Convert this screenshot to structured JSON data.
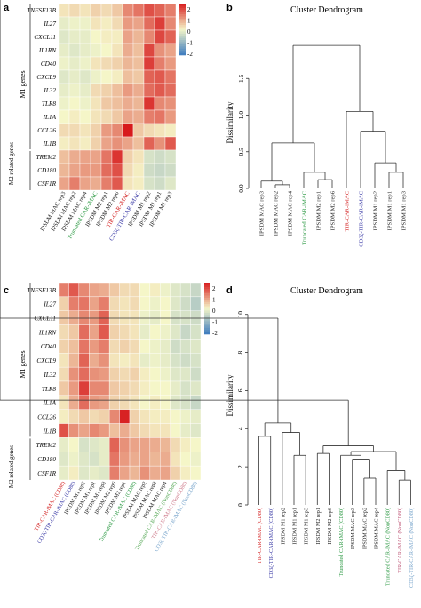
{
  "panels": {
    "a": {
      "label": "a",
      "rows": [
        "TNFSF13B",
        "IL27",
        "CXCL11",
        "IL1RN",
        "CD40",
        "CXCL9",
        "IL32",
        "TLR8",
        "IL1A",
        "CCL26",
        "IL1B",
        "TREM2",
        "CD180",
        "CSF1R"
      ],
      "cols": [
        {
          "label": "IPSDM MAC rep3",
          "color": "#222222"
        },
        {
          "label": "IPSDM MAC rep2",
          "color": "#222222"
        },
        {
          "label": "IPSDM MAC rep4",
          "color": "#222222"
        },
        {
          "label": "Truncated CAR-iMAC",
          "color": "#2e9a45"
        },
        {
          "label": "IPSDM M2 rep1",
          "color": "#222222"
        },
        {
          "label": "IPSDM M2 rep6",
          "color": "#222222"
        },
        {
          "label": "TIR-CAR-iMAC",
          "color": "#d42424"
        },
        {
          "label": "CD3ζ-TIR-CAR-iMAC",
          "color": "#3a3aa6"
        },
        {
          "label": "IPSDM M1 rep2",
          "color": "#222222"
        },
        {
          "label": "IPSDM M1 rep1",
          "color": "#222222"
        },
        {
          "label": "IPSDM M1 rep3",
          "color": "#222222"
        }
      ],
      "values": [
        [
          0.2,
          0.3,
          0.2,
          0.4,
          0.3,
          0.5,
          1.2,
          1.4,
          1.8,
          1.6,
          1.3
        ],
        [
          -0.2,
          -0.1,
          -0.1,
          0.2,
          0.1,
          0.3,
          1.0,
          0.9,
          1.5,
          2.0,
          1.2
        ],
        [
          -0.3,
          -0.2,
          -0.2,
          0.0,
          0.1,
          0.1,
          0.9,
          0.7,
          1.2,
          1.9,
          1.6
        ],
        [
          -0.2,
          -0.3,
          -0.2,
          -0.1,
          0.0,
          0.2,
          0.8,
          0.6,
          1.9,
          1.1,
          0.9
        ],
        [
          -0.1,
          -0.2,
          -0.1,
          0.2,
          0.3,
          0.4,
          0.7,
          0.6,
          2.0,
          1.3,
          1.0
        ],
        [
          -0.3,
          -0.2,
          -0.3,
          -0.1,
          0.0,
          0.1,
          0.6,
          0.5,
          1.6,
          1.7,
          1.4
        ],
        [
          -0.2,
          -0.1,
          -0.2,
          0.3,
          0.4,
          0.6,
          1.0,
          0.8,
          1.5,
          1.7,
          1.5
        ],
        [
          -0.1,
          0.0,
          -0.1,
          0.2,
          0.5,
          0.6,
          0.8,
          0.7,
          2.1,
          1.2,
          1.1
        ],
        [
          0.0,
          0.1,
          0.0,
          0.2,
          0.3,
          0.5,
          0.9,
          0.8,
          1.3,
          1.4,
          1.0
        ],
        [
          0.3,
          0.3,
          0.2,
          0.4,
          1.0,
          1.2,
          2.4,
          0.5,
          0.3,
          0.2,
          0.1
        ],
        [
          0.1,
          0.2,
          0.1,
          0.4,
          0.9,
          1.1,
          0.9,
          0.6,
          1.6,
          1.1,
          1.7
        ],
        [
          0.6,
          0.8,
          0.9,
          0.9,
          1.4,
          2.1,
          0.4,
          0.2,
          -0.4,
          -0.5,
          -0.4
        ],
        [
          0.7,
          0.9,
          1.0,
          1.0,
          1.5,
          1.8,
          0.3,
          0.1,
          -0.5,
          -0.6,
          -0.5
        ],
        [
          0.9,
          1.3,
          0.9,
          0.8,
          1.3,
          1.7,
          0.2,
          0.1,
          -0.4,
          -0.5,
          -0.3
        ]
      ],
      "group_labels": [
        "M1 genes",
        "M2 related genes"
      ],
      "legend_ticks": [
        "2",
        "1",
        "0",
        "-1",
        "-2"
      ]
    },
    "b": {
      "label": "b",
      "title": "Cluster Dendrogram",
      "ylabel": "Dissimilarity",
      "yticks": [
        "0.0",
        "0.5",
        "1.0",
        "1.5"
      ],
      "leaves": [
        {
          "label": "IPSDM MAC rep3",
          "color": "#222222"
        },
        {
          "label": "IPSDM MAC rep2",
          "color": "#222222"
        },
        {
          "label": "IPSDM MAC rep4",
          "color": "#222222"
        },
        {
          "label": "Truncated CAR-iMAC",
          "color": "#2e9a45"
        },
        {
          "label": "IPSDM M2 rep1",
          "color": "#222222"
        },
        {
          "label": "IPSDM M2 rep6",
          "color": "#222222"
        },
        {
          "label": "TIR-CAR-iMAC",
          "color": "#d42424"
        },
        {
          "label": "CD3ζ-TIR-CAR-iMAC",
          "color": "#3a3aa6"
        },
        {
          "label": "IPSDM M1 rep2",
          "color": "#222222"
        },
        {
          "label": "IPSDM M1 rep1",
          "color": "#222222"
        },
        {
          "label": "IPSDM M1 rep3",
          "color": "#222222"
        }
      ],
      "merges": [
        [
          1,
          2,
          0.05
        ],
        [
          0,
          11,
          0.1
        ],
        [
          4,
          5,
          0.12
        ],
        [
          3,
          13,
          0.22
        ],
        [
          12,
          14,
          0.62
        ],
        [
          9,
          10,
          0.22
        ],
        [
          8,
          16,
          0.35
        ],
        [
          7,
          17,
          0.78
        ],
        [
          6,
          18,
          1.05
        ],
        [
          15,
          19,
          1.95
        ]
      ],
      "ymax": 2.0
    },
    "c": {
      "label": "c",
      "rows": [
        "TNFSF13B",
        "IL27",
        "CXCL11",
        "IL1RN",
        "CD40",
        "CXCL9",
        "IL32",
        "TLR8",
        "IL1A",
        "CCL26",
        "IL1B",
        "TREM2",
        "CD180",
        "CSF1R"
      ],
      "cols": [
        {
          "label": "TIR-CAR-iMAC (CD80)",
          "color": "#d42424"
        },
        {
          "label": "CD3ζ-TIR-CAR-iMAC (CD80)",
          "color": "#3a3aa6"
        },
        {
          "label": "IPSDM M1 rep2",
          "color": "#222222"
        },
        {
          "label": "IPSDM M1 rep1",
          "color": "#222222"
        },
        {
          "label": "IPSDM M1 rep3",
          "color": "#222222"
        },
        {
          "label": "IPSDM M2 rep6",
          "color": "#222222"
        },
        {
          "label": "IPSDM M2 rep1",
          "color": "#222222"
        },
        {
          "label": "Truncated CAR-iMAC (CD80)",
          "color": "#2e9a45"
        },
        {
          "label": "IPSDM MAC rep2",
          "color": "#222222"
        },
        {
          "label": "IPSDM MAC rep3",
          "color": "#222222"
        },
        {
          "label": "IPSDM MAC rep4",
          "color": "#222222"
        },
        {
          "label": "Truncated CAR-iMAC (NonCD80)",
          "color": "#5aaa5a"
        },
        {
          "label": "TIR-CAR-iMAC (NonCD80)",
          "color": "#d08090"
        },
        {
          "label": "CD3ζ-TIR-CAR-iMAC (NonCD80)",
          "color": "#7aa6cc"
        }
      ],
      "values": [
        [
          1.3,
          1.7,
          1.2,
          0.9,
          0.8,
          0.5,
          0.3,
          0.3,
          0.0,
          0.1,
          -0.1,
          -0.3,
          -0.4,
          -0.6
        ],
        [
          0.4,
          1.3,
          1.4,
          0.9,
          1.3,
          0.3,
          0.2,
          0.3,
          0.0,
          -0.1,
          0.0,
          -0.3,
          -0.5,
          -0.8
        ],
        [
          0.5,
          0.8,
          1.2,
          1.0,
          1.6,
          0.3,
          0.2,
          0.2,
          -0.1,
          -0.2,
          0.0,
          -0.4,
          -0.4,
          -0.5
        ],
        [
          0.3,
          0.5,
          1.5,
          0.9,
          1.7,
          0.4,
          0.3,
          0.2,
          -0.2,
          0.0,
          -0.1,
          -0.3,
          -0.6,
          -0.4
        ],
        [
          0.4,
          0.6,
          1.4,
          1.0,
          1.3,
          0.3,
          0.4,
          0.3,
          0.0,
          -0.1,
          -0.2,
          -0.5,
          -0.4,
          -0.3
        ],
        [
          0.2,
          0.7,
          1.6,
          0.8,
          1.1,
          0.2,
          0.1,
          0.2,
          -0.2,
          -0.1,
          -0.2,
          -0.4,
          -0.5,
          -0.4
        ],
        [
          0.3,
          1.1,
          1.5,
          1.1,
          1.0,
          0.4,
          0.3,
          0.4,
          0.1,
          0.0,
          -0.1,
          -0.3,
          -0.3,
          -0.5
        ],
        [
          0.5,
          1.0,
          2.0,
          1.2,
          1.2,
          0.5,
          0.4,
          0.3,
          0.1,
          0.0,
          0.0,
          -0.2,
          -0.4,
          -0.3
        ],
        [
          0.2,
          0.8,
          1.5,
          1.0,
          0.9,
          0.4,
          0.3,
          0.2,
          0.0,
          0.1,
          0.0,
          -0.3,
          -0.4,
          -0.6
        ],
        [
          0.1,
          0.3,
          0.5,
          0.3,
          0.4,
          1.2,
          2.3,
          0.4,
          0.2,
          0.1,
          0.1,
          0.0,
          -0.1,
          -0.2
        ],
        [
          1.8,
          1.1,
          0.9,
          1.2,
          1.0,
          0.6,
          0.8,
          0.5,
          0.3,
          0.2,
          0.2,
          0.0,
          -0.2,
          -0.3
        ],
        [
          -0.2,
          0.0,
          -0.4,
          -0.3,
          -0.2,
          1.6,
          1.1,
          0.9,
          0.9,
          0.8,
          0.7,
          0.3,
          0.1,
          0.0
        ],
        [
          -0.3,
          -0.1,
          -0.3,
          -0.4,
          -0.2,
          1.4,
          1.0,
          0.8,
          0.9,
          0.7,
          0.8,
          0.2,
          0.0,
          -0.1
        ],
        [
          -0.2,
          0.1,
          -0.3,
          -0.2,
          -0.3,
          1.3,
          0.9,
          0.7,
          1.1,
          0.8,
          0.9,
          0.4,
          0.1,
          0.0
        ]
      ],
      "group_labels": [
        "M1 genes",
        "M2 related genes"
      ],
      "legend_ticks": [
        "2",
        "1",
        "0",
        "-1",
        "-2"
      ]
    },
    "d": {
      "label": "d",
      "title": "Cluster Dendrogram",
      "ylabel": "Dissimilarity",
      "yticks": [
        "0",
        "2",
        "4",
        "6",
        "8",
        "10"
      ],
      "leaves": [
        {
          "label": "TIR-CAR-iMAC (CD80)",
          "color": "#d42424"
        },
        {
          "label": "CD3ζ-TIR-CAR-iMAC (CD80)",
          "color": "#3a3aa6"
        },
        {
          "label": "IPSDM M1 rep2",
          "color": "#222222"
        },
        {
          "label": "IPSDM M1 rep1",
          "color": "#222222"
        },
        {
          "label": "IPSDM M1 rep3",
          "color": "#222222"
        },
        {
          "label": "IPSDM M2 rep1",
          "color": "#222222"
        },
        {
          "label": "IPSDM M2 rep6",
          "color": "#222222"
        },
        {
          "label": "Truncated CAR-iMAC (CD80)",
          "color": "#2e9a45"
        },
        {
          "label": "IPSDM MAC rep3",
          "color": "#222222"
        },
        {
          "label": "IPSDM MAC rep2",
          "color": "#222222"
        },
        {
          "label": "IPSDM MAC rep4",
          "color": "#222222"
        },
        {
          "label": "Truncated CAR-iMAC (NonCD80)",
          "color": "#2e9a45"
        },
        {
          "label": "TIR-CAR-iMAC (NonCD80)",
          "color": "#c05a7a"
        },
        {
          "label": "CD3ζ-TIR-CAR-iMAC (NonCD80)",
          "color": "#7aa6cc"
        }
      ],
      "merges": [
        [
          3,
          4,
          2.6
        ],
        [
          2,
          14,
          3.8
        ],
        [
          0,
          1,
          3.6
        ],
        [
          16,
          15,
          4.3
        ],
        [
          5,
          6,
          2.7
        ],
        [
          12,
          13,
          1.3
        ],
        [
          11,
          19,
          1.8
        ],
        [
          9,
          10,
          1.4
        ],
        [
          8,
          21,
          2.4
        ],
        [
          7,
          22,
          2.6
        ],
        [
          20,
          23,
          2.8
        ],
        [
          18,
          24,
          3.1
        ],
        [
          25,
          26,
          5.5
        ],
        [
          17,
          27,
          9.8
        ]
      ],
      "ymax": 10.5
    }
  },
  "colors": {
    "low": "#3c7bbf",
    "mid": "#f5f6c8",
    "high": "#d7191c"
  }
}
